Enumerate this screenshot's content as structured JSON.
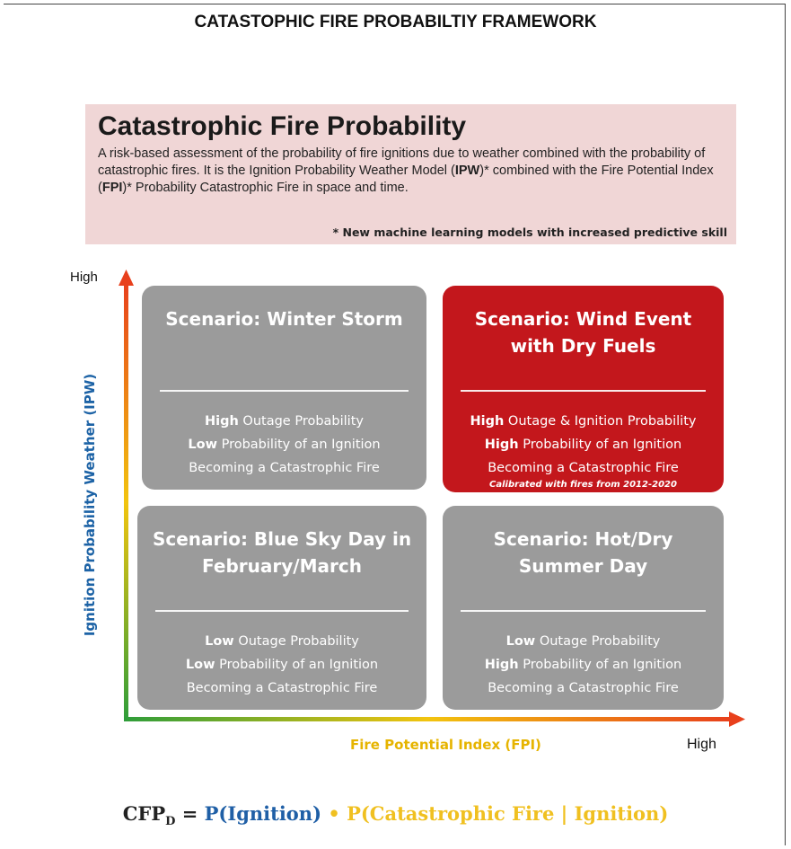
{
  "header": {
    "title": "CATASTOPHIC FIRE PROBABILTIY FRAMEWORK"
  },
  "definition": {
    "heading": "Catastrophic Fire Probability",
    "description": [
      "A risk-based assessment of the probability of fire ignitions due to weather combined with the probability of catastrophic fires. It is the Ignition Probability Weather Model (",
      "IPW",
      ")* combined with the Fire Potential Index (",
      "FPI",
      ")* Probability Catastrophic Fire in space and time."
    ],
    "note": "* New machine learning models with increased predictive skill"
  },
  "axes": {
    "y_label": "Ignition Probability Weather (IPW)",
    "y_high": "High",
    "x_label": "Fire Potential Index (FPI)",
    "x_high": "High"
  },
  "quadrants": [
    {
      "title": "Scenario: Winter Storm",
      "style": "gray",
      "lines": [
        {
          "bold": "High",
          "text": " Outage Probability"
        },
        {
          "bold": "Low",
          "text": " Probability of an Ignition"
        },
        {
          "text": "Becoming a Catastrophic Fire"
        }
      ]
    },
    {
      "title": "Scenario: Wind Event with Dry Fuels",
      "style": "red",
      "lines": [
        {
          "bold": "High",
          "text": " Outage & Ignition Probability"
        },
        {
          "bold": "High",
          "text": " Probability of an Ignition"
        },
        {
          "text": "Becoming a Catastrophic Fire"
        }
      ],
      "note": "Calibrated with fires from 2012-2020"
    },
    {
      "title": "Scenario: Blue Sky Day in February/March",
      "style": "gray",
      "lines": [
        {
          "bold": "Low",
          "text": " Outage Probability"
        },
        {
          "bold": "Low",
          "text": " Probability of an Ignition"
        },
        {
          "text": "Becoming a Catastrophic Fire"
        }
      ]
    },
    {
      "title": "Scenario: Hot/Dry Summer Day",
      "style": "gray",
      "lines": [
        {
          "bold": "Low",
          "text": " Outage Probability"
        },
        {
          "bold": "High",
          "text": " Probability of an Ignition"
        },
        {
          "text": "Becoming a Catastrophic Fire"
        }
      ]
    }
  ],
  "formula": {
    "lhs": "CFP",
    "subscript": "D",
    "equals": " = ",
    "term1": "P(Ignition)",
    "operator": " • ",
    "term2": "P(Catastrophic Fire | Ignition)"
  }
}
